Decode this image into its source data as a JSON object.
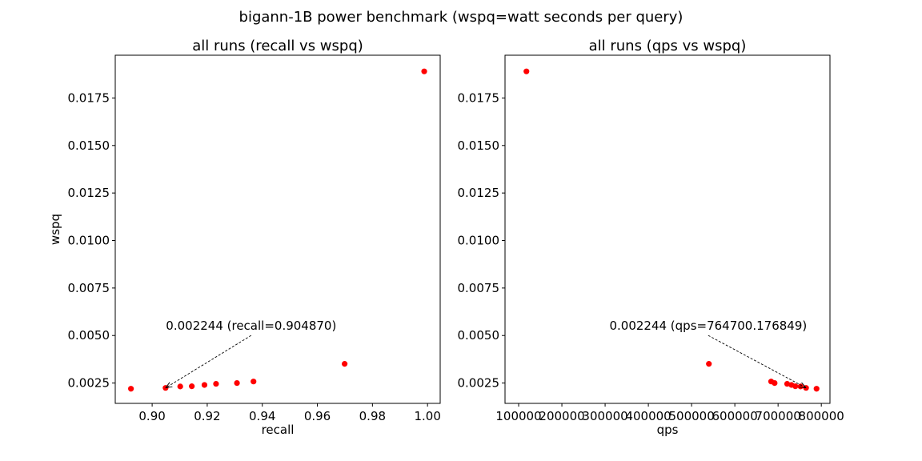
{
  "suptitle": "bigann-1B power benchmark (wspq=watt seconds per query)",
  "chart_data": [
    {
      "type": "scatter",
      "title": "all runs (recall vs wspq)",
      "xlabel": "recall",
      "ylabel": "wspq",
      "xlim": [
        0.8866,
        1.0046
      ],
      "ylim": [
        0.00143,
        0.01975
      ],
      "xticks": [
        0.9,
        0.92,
        0.94,
        0.96,
        0.98,
        1.0
      ],
      "xtick_labels": [
        "0.90",
        "0.92",
        "0.94",
        "0.96",
        "0.98",
        "1.00"
      ],
      "yticks": [
        0.0025,
        0.005,
        0.0075,
        0.01,
        0.0125,
        0.015,
        0.0175
      ],
      "ytick_labels": [
        "0.0025",
        "0.0050",
        "0.0075",
        "0.0100",
        "0.0125",
        "0.0150",
        "0.0175"
      ],
      "color": "#ff0000",
      "points": [
        {
          "x": 0.8923,
          "y": 0.0022
        },
        {
          "x": 0.90487,
          "y": 0.002244
        },
        {
          "x": 0.9102,
          "y": 0.00232
        },
        {
          "x": 0.9144,
          "y": 0.00233
        },
        {
          "x": 0.919,
          "y": 0.0024
        },
        {
          "x": 0.9232,
          "y": 0.00246
        },
        {
          "x": 0.9308,
          "y": 0.0025
        },
        {
          "x": 0.9368,
          "y": 0.00258
        },
        {
          "x": 0.9699,
          "y": 0.00351
        },
        {
          "x": 0.9988,
          "y": 0.0189
        }
      ],
      "annotation": {
        "text": "0.002244 (recall=0.904870)",
        "point": {
          "x": 0.90487,
          "y": 0.002244
        },
        "text_at": {
          "x": 0.905,
          "y": 0.0053
        }
      }
    },
    {
      "type": "scatter",
      "title": "all runs (qps vs wspq)",
      "xlabel": "qps",
      "ylabel": "",
      "xlim": [
        68500,
        820000
      ],
      "ylim": [
        0.00143,
        0.01975
      ],
      "xticks": [
        100000,
        200000,
        300000,
        400000,
        500000,
        600000,
        700000,
        800000
      ],
      "xtick_labels": [
        "100000",
        "200000",
        "300000",
        "400000",
        "500000",
        "600000",
        "700000",
        "800000"
      ],
      "yticks": [
        0.0025,
        0.005,
        0.0075,
        0.01,
        0.0125,
        0.015,
        0.0175
      ],
      "ytick_labels": [
        "0.0025",
        "0.0050",
        "0.0075",
        "0.0100",
        "0.0125",
        "0.0150",
        "0.0175"
      ],
      "color": "#ff0000",
      "points": [
        {
          "x": 118000,
          "y": 0.0189
        },
        {
          "x": 540000,
          "y": 0.00351
        },
        {
          "x": 684000,
          "y": 0.00258
        },
        {
          "x": 692000,
          "y": 0.0025
        },
        {
          "x": 721000,
          "y": 0.00246
        },
        {
          "x": 731000,
          "y": 0.0024
        },
        {
          "x": 740000,
          "y": 0.00233
        },
        {
          "x": 752000,
          "y": 0.00232
        },
        {
          "x": 764700.176849,
          "y": 0.002244
        },
        {
          "x": 789000,
          "y": 0.0022
        }
      ],
      "annotation": {
        "text": "0.002244 (qps=764700.176849)",
        "point": {
          "x": 764700.176849,
          "y": 0.002244
        },
        "text_at": {
          "x": 310000,
          "y": 0.0053
        }
      }
    }
  ]
}
